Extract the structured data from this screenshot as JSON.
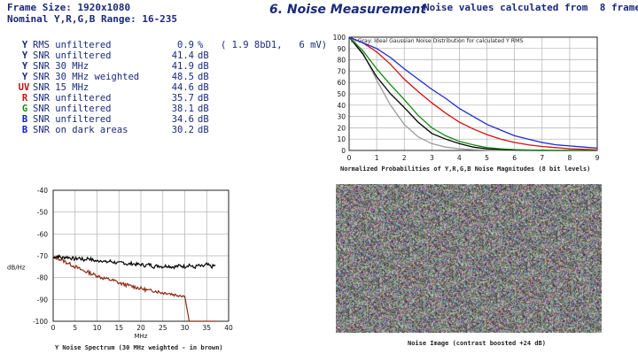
{
  "header": {
    "frame_size": "Frame Size: 1920x1080",
    "range": "Nominal Y,R,G,B Range: 16-235",
    "title": "6. Noise Measurement",
    "frames_label": "Noise values calculated from",
    "frames_count": "8",
    "frames_unit": "frames"
  },
  "measurements": [
    {
      "letter": "Y",
      "letter_color": "#1a2a7a",
      "name": "RMS unfiltered",
      "value": "0.9",
      "unit": "%",
      "extra": "( 1.9 8bD1,   6 mV)"
    },
    {
      "letter": "Y",
      "letter_color": "#1a2a7a",
      "name": "SNR unfiltered",
      "value": "41.4",
      "unit": "dB",
      "extra": ""
    },
    {
      "letter": "Y",
      "letter_color": "#1a2a7a",
      "name": "SNR 30 MHz",
      "value": "41.9",
      "unit": "dB",
      "extra": ""
    },
    {
      "letter": "Y",
      "letter_color": "#1a2a7a",
      "name": "SNR 30 MHz weighted",
      "value": "48.5",
      "unit": "dB",
      "extra": ""
    },
    {
      "letter": "UV",
      "letter_color": "#c01010",
      "name": "SNR 15 MHz",
      "value": "44.6",
      "unit": "dB",
      "extra": ""
    },
    {
      "letter": "R",
      "letter_color": "#d01010",
      "name": "SNR unfiltered",
      "value": "35.7",
      "unit": "dB",
      "extra": ""
    },
    {
      "letter": "G",
      "letter_color": "#109010",
      "name": "SNR unfiltered",
      "value": "38.1",
      "unit": "dB",
      "extra": ""
    },
    {
      "letter": "B",
      "letter_color": "#1020d0",
      "name": "SNR unfiltered",
      "value": "34.6",
      "unit": "dB",
      "extra": ""
    },
    {
      "letter": "B",
      "letter_color": "#1020d0",
      "name": "SNR on dark areas",
      "value": "30.2",
      "unit": "dB",
      "extra": ""
    }
  ],
  "prob_chart": {
    "legend_note": "In Gray: Ideal Gaussian Noise Distribution for calculated Y RMS",
    "caption": "Normalized Probabilities of Y,R,G,B Noise Magnitudes (8 bit levels)"
  },
  "noise_image": {
    "caption": "Noise Image (contrast boosted +24 dB)"
  },
  "spectrum": {
    "caption": "Y Noise Spectrum (30 MHz weighted - in brown)"
  },
  "colors": {
    "y": "#000000",
    "r": "#d01010",
    "g": "#108a10",
    "b": "#1a2ad0",
    "weighted": "#8b2a10",
    "gaussian": "#9a9a9a"
  },
  "chart_data": [
    {
      "type": "line",
      "title": "",
      "xlabel": "",
      "ylabel": "",
      "xlim": [
        0,
        9
      ],
      "ylim": [
        0,
        100
      ],
      "x_ticks": [
        0,
        1,
        2,
        3,
        4,
        5,
        6,
        7,
        8,
        9
      ],
      "y_ticks": [
        0,
        10,
        20,
        30,
        40,
        50,
        60,
        70,
        80,
        90,
        100
      ],
      "grid": true,
      "x": [
        0,
        0.5,
        1,
        1.5,
        2,
        2.5,
        3,
        3.5,
        4,
        4.5,
        5,
        5.5,
        6,
        6.5,
        7,
        7.5,
        8,
        8.5,
        9
      ],
      "series": [
        {
          "key": "gaussian",
          "values": [
            100,
            86,
            62,
            40,
            23,
            12,
            6,
            3,
            1.5,
            0.7,
            0.3,
            0.1,
            0,
            0,
            0,
            0,
            0,
            0,
            0
          ]
        },
        {
          "key": "y",
          "values": [
            100,
            85,
            65,
            50,
            38,
            25,
            15,
            10,
            6,
            3,
            1.5,
            0.8,
            0.4,
            0.2,
            0,
            0,
            0,
            0,
            0
          ]
        },
        {
          "key": "g",
          "values": [
            100,
            88,
            72,
            58,
            45,
            31,
            20,
            13,
            8,
            5,
            2.5,
            1.5,
            0.8,
            0.4,
            0.2,
            0,
            0,
            0,
            0
          ]
        },
        {
          "key": "r",
          "values": [
            100,
            95,
            87,
            76,
            63,
            52,
            42,
            33,
            25,
            19,
            14,
            10,
            7,
            5,
            3.5,
            2.5,
            1.5,
            1,
            0.5
          ]
        },
        {
          "key": "b",
          "values": [
            100,
            95,
            90,
            82,
            72,
            63,
            54,
            46,
            37,
            30,
            23,
            18,
            13,
            10,
            7,
            5,
            4,
            3,
            2
          ]
        }
      ]
    },
    {
      "type": "line",
      "title": "",
      "xlabel": "MHz",
      "ylabel": "dB/Hz",
      "xlim": [
        0,
        40
      ],
      "ylim": [
        -100,
        -40
      ],
      "x_ticks": [
        0,
        5,
        10,
        15,
        20,
        25,
        30,
        35,
        40
      ],
      "y_ticks": [
        -40,
        -50,
        -60,
        -70,
        -80,
        -90,
        -100
      ],
      "grid": true,
      "x": [
        0,
        1,
        2,
        3,
        4,
        5,
        6,
        7,
        8,
        9,
        10,
        11,
        12,
        13,
        14,
        15,
        16,
        17,
        18,
        19,
        20,
        21,
        22,
        23,
        24,
        25,
        26,
        27,
        28,
        29,
        30,
        31,
        32,
        33,
        34,
        35,
        36,
        37
      ],
      "series": [
        {
          "key": "y",
          "values": [
            -71,
            -70,
            -71,
            -70.5,
            -71,
            -71.5,
            -71,
            -72,
            -71,
            -72,
            -72.5,
            -72,
            -73,
            -72.5,
            -73,
            -73.5,
            -73,
            -74,
            -73.5,
            -74,
            -74,
            -74.5,
            -74,
            -75,
            -74.5,
            -75,
            -74.5,
            -75,
            -75,
            -74.5,
            -75,
            -74,
            -75.5,
            -74.5,
            -75,
            -74,
            -75,
            -74.5
          ]
        },
        {
          "key": "weighted",
          "values": [
            -71,
            -71,
            -72,
            -73,
            -74,
            -75,
            -76,
            -77,
            -77.5,
            -78.5,
            -79,
            -80,
            -80.5,
            -81,
            -81.5,
            -82.5,
            -83,
            -83.5,
            -84,
            -84.5,
            -85,
            -85.5,
            -86,
            -86,
            -86.5,
            -87,
            -87,
            -87.5,
            -88,
            -88,
            -88.5,
            -100,
            -100,
            -100,
            -100,
            -100,
            -100,
            -100
          ]
        }
      ]
    }
  ]
}
